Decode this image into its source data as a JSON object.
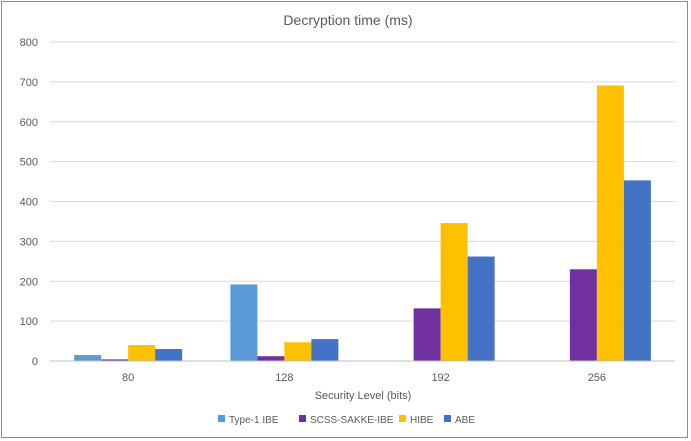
{
  "chart_data": {
    "type": "bar",
    "title": "Decryption time (ms)",
    "xlabel": "Security Level (bits)",
    "ylabel": "",
    "categories": [
      "80",
      "128",
      "192",
      "256"
    ],
    "ylim": [
      0,
      800
    ],
    "yticks": [
      0,
      100,
      200,
      300,
      400,
      500,
      600,
      700,
      800
    ],
    "grid": true,
    "legend_position": "bottom",
    "series": [
      {
        "name": "Type-1 IBE",
        "color": "#5b9bd5",
        "values": [
          15,
          192,
          0,
          0
        ]
      },
      {
        "name": "SCSS-SAKKE-IBE",
        "color": "#7030a0",
        "values": [
          4,
          12,
          132,
          230
        ]
      },
      {
        "name": "HIBE",
        "color": "#ffc000",
        "values": [
          40,
          47,
          346,
          691
        ]
      },
      {
        "name": "ABE",
        "color": "#4472c4",
        "values": [
          30,
          55,
          262,
          453
        ]
      }
    ]
  }
}
